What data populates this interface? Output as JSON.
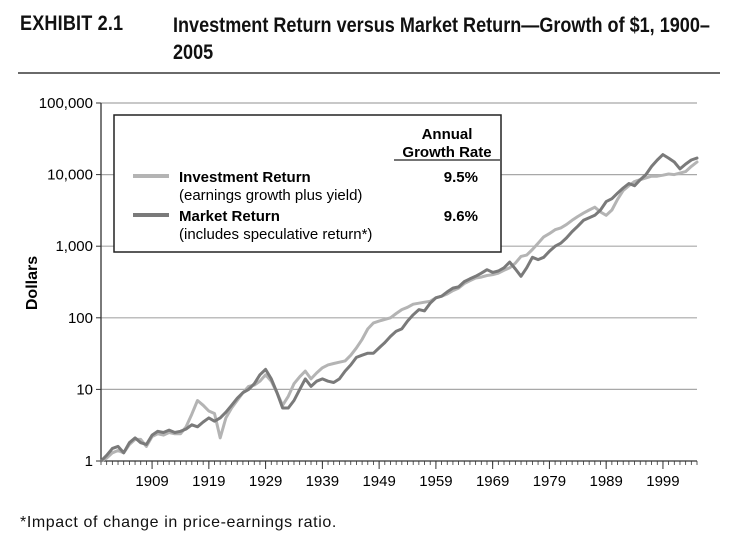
{
  "exhibit": {
    "label": "EXHIBIT 2.1",
    "title": "Investment Return versus Market Return—Growth of $1, 1900–2005"
  },
  "footnote": "*Impact of change in price-earnings ratio.",
  "colors": {
    "investment": "#b4b4b4",
    "market": "#7a7a7a",
    "grid": "#a8a8a8",
    "axis": "#333333"
  },
  "chart_data": {
    "type": "line",
    "scale": "log",
    "title": "Investment Return versus Market Return—Growth of $1, 1900–2005",
    "ylabel": "Dollars",
    "xlabel": "",
    "xlim": [
      1900,
      2005
    ],
    "ylim": [
      1,
      100000
    ],
    "y_ticks": [
      {
        "value": 1,
        "label": "1"
      },
      {
        "value": 10,
        "label": "10"
      },
      {
        "value": 100,
        "label": "100"
      },
      {
        "value": 1000,
        "label": "1,000"
      },
      {
        "value": 10000,
        "label": "10,000"
      },
      {
        "value": 100000,
        "label": "100,000"
      }
    ],
    "x_ticks": [
      1909,
      1919,
      1929,
      1939,
      1949,
      1959,
      1969,
      1979,
      1989,
      1999
    ],
    "legend": {
      "position": "top-left",
      "header_line1": "Annual",
      "header_line2": "Growth Rate",
      "entries": [
        {
          "name": "Investment Return",
          "subtitle": "(earnings growth plus yield)",
          "rate": "9.5%"
        },
        {
          "name": "Market Return",
          "subtitle": "(includes speculative return*)",
          "rate": "9.6%"
        }
      ]
    },
    "series": [
      {
        "name": "Investment Return",
        "x": [
          1900,
          1901,
          1902,
          1903,
          1904,
          1905,
          1906,
          1907,
          1908,
          1909,
          1910,
          1911,
          1912,
          1913,
          1914,
          1915,
          1916,
          1917,
          1918,
          1919,
          1920,
          1921,
          1922,
          1923,
          1924,
          1925,
          1926,
          1927,
          1928,
          1929,
          1930,
          1931,
          1932,
          1933,
          1934,
          1935,
          1936,
          1937,
          1938,
          1939,
          1940,
          1941,
          1942,
          1943,
          1944,
          1945,
          1946,
          1947,
          1948,
          1949,
          1950,
          1951,
          1952,
          1953,
          1954,
          1955,
          1956,
          1957,
          1958,
          1959,
          1960,
          1961,
          1962,
          1963,
          1964,
          1965,
          1966,
          1967,
          1968,
          1969,
          1970,
          1971,
          1972,
          1973,
          1974,
          1975,
          1976,
          1977,
          1978,
          1979,
          1980,
          1981,
          1982,
          1983,
          1984,
          1985,
          1986,
          1987,
          1988,
          1989,
          1990,
          1991,
          1992,
          1993,
          1994,
          1995,
          1996,
          1997,
          1998,
          1999,
          2000,
          2001,
          2002,
          2003,
          2004,
          2005
        ],
        "values": [
          1.0,
          1.1,
          1.3,
          1.4,
          1.3,
          1.7,
          2.0,
          2.0,
          1.6,
          2.2,
          2.4,
          2.3,
          2.5,
          2.4,
          2.4,
          3.0,
          4.5,
          7.0,
          6.0,
          5.0,
          4.6,
          2.1,
          4.0,
          5.5,
          7.0,
          9.0,
          11.0,
          11.5,
          13.0,
          16.0,
          13.0,
          9.0,
          6.0,
          8.0,
          12.0,
          15.0,
          18.0,
          14.0,
          17.0,
          20.0,
          22.0,
          23.0,
          24.0,
          25.0,
          30.0,
          38.0,
          50.0,
          70.0,
          85.0,
          90.0,
          95.0,
          100,
          115,
          130,
          140,
          155,
          160,
          165,
          170,
          190,
          200,
          215,
          240,
          260,
          300,
          330,
          360,
          370,
          390,
          400,
          420,
          460,
          500,
          580,
          720,
          750,
          900,
          1100,
          1350,
          1500,
          1700,
          1800,
          2000,
          2300,
          2600,
          2900,
          3200,
          3500,
          3000,
          2700,
          3200,
          4500,
          6000,
          7000,
          8000,
          8500,
          9000,
          9500,
          9500,
          9800,
          10200,
          10000,
          10500,
          11000,
          13000,
          15000
        ]
      },
      {
        "name": "Market Return",
        "x": [
          1900,
          1901,
          1902,
          1903,
          1904,
          1905,
          1906,
          1907,
          1908,
          1909,
          1910,
          1911,
          1912,
          1913,
          1914,
          1915,
          1916,
          1917,
          1918,
          1919,
          1920,
          1921,
          1922,
          1923,
          1924,
          1925,
          1926,
          1927,
          1928,
          1929,
          1930,
          1931,
          1932,
          1933,
          1934,
          1935,
          1936,
          1937,
          1938,
          1939,
          1940,
          1941,
          1942,
          1943,
          1944,
          1945,
          1946,
          1947,
          1948,
          1949,
          1950,
          1951,
          1952,
          1953,
          1954,
          1955,
          1956,
          1957,
          1958,
          1959,
          1960,
          1961,
          1962,
          1963,
          1964,
          1965,
          1966,
          1967,
          1968,
          1969,
          1970,
          1971,
          1972,
          1973,
          1974,
          1975,
          1976,
          1977,
          1978,
          1979,
          1980,
          1981,
          1982,
          1983,
          1984,
          1985,
          1986,
          1987,
          1988,
          1989,
          1990,
          1991,
          1992,
          1993,
          1994,
          1995,
          1996,
          1997,
          1998,
          1999,
          2000,
          2001,
          2002,
          2003,
          2004,
          2005
        ],
        "values": [
          1.0,
          1.2,
          1.5,
          1.6,
          1.3,
          1.8,
          2.1,
          1.8,
          1.7,
          2.3,
          2.6,
          2.5,
          2.7,
          2.5,
          2.6,
          2.8,
          3.2,
          3.0,
          3.5,
          4.0,
          3.6,
          4.0,
          4.8,
          6.0,
          7.5,
          9.0,
          10.0,
          12.0,
          16.0,
          19.0,
          14.0,
          9.0,
          5.5,
          5.5,
          7.0,
          10.0,
          14.0,
          11.0,
          13.0,
          14.0,
          13.0,
          12.5,
          14.0,
          18.0,
          22.0,
          28.0,
          30.0,
          32.0,
          32.0,
          38.0,
          45.0,
          55.0,
          65.0,
          70.0,
          90.0,
          110,
          130,
          125,
          160,
          190,
          200,
          230,
          260,
          270,
          320,
          350,
          380,
          420,
          470,
          430,
          450,
          500,
          600,
          480,
          380,
          500,
          700,
          650,
          700,
          850,
          1000,
          1100,
          1300,
          1600,
          1900,
          2300,
          2500,
          2700,
          3200,
          4200,
          4600,
          5500,
          6500,
          7500,
          7000,
          8500,
          10000,
          13000,
          16000,
          19000,
          17000,
          15000,
          12000,
          14000,
          16000,
          17000
        ]
      }
    ]
  }
}
